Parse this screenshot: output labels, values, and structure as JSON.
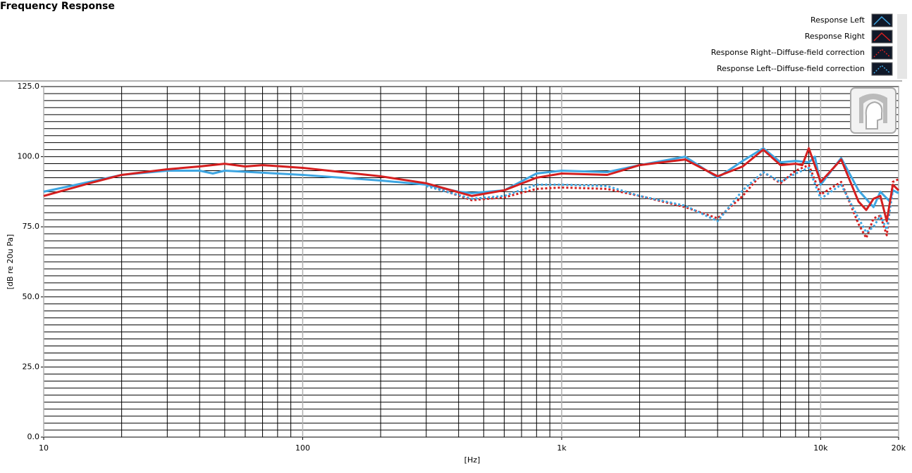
{
  "chart_data": {
    "type": "line",
    "title": "Frequency Response",
    "xlabel": "[Hz]",
    "ylabel": "[dB re 20u Pa]",
    "xscale": "log",
    "xlim": [
      10,
      20000
    ],
    "ylim": [
      0,
      125
    ],
    "xticks": [
      10,
      100,
      {
        "value": 1000,
        "label": "1k"
      },
      {
        "value": 10000,
        "label": "10k"
      },
      {
        "value": 20000,
        "label": "20k"
      }
    ],
    "yticks": [
      {
        "value": 0,
        "label": "0.0"
      },
      {
        "value": 25,
        "label": "25.0"
      },
      {
        "value": 50,
        "label": "50.0"
      },
      {
        "value": 75,
        "label": "75.0"
      },
      {
        "value": 100,
        "label": "100.0"
      },
      {
        "value": 125,
        "label": "125.0"
      }
    ],
    "xminorticks": [
      20,
      30,
      40,
      50,
      60,
      70,
      80,
      90,
      200,
      300,
      400,
      500,
      600,
      700,
      800,
      900,
      2000,
      3000,
      4000,
      5000,
      6000,
      7000,
      8000,
      9000
    ],
    "yminorticks": [
      2.5,
      5,
      7.5,
      10,
      12.5,
      15,
      17.5,
      20,
      22.5,
      27.5,
      30,
      32.5,
      35,
      37.5,
      40,
      42.5,
      45,
      47.5,
      52.5,
      55,
      57.5,
      60,
      62.5,
      65,
      67.5,
      70,
      72.5,
      77.5,
      80,
      82.5,
      85,
      87.5,
      90,
      92.5,
      95,
      97.5,
      102.5,
      105,
      107.5,
      110,
      112.5,
      115,
      117.5,
      120,
      122.5
    ],
    "grid": true,
    "legend_position": "top-right",
    "series": [
      {
        "name": "Response Left",
        "color": "#3ea6e2",
        "dashed": false,
        "x": [
          10,
          15,
          20,
          30,
          40,
          45,
          50,
          100,
          200,
          300,
          400,
          450,
          600,
          800,
          1000,
          1500,
          2000,
          3000,
          4000,
          5000,
          6000,
          7000,
          8000,
          9000,
          9500,
          10000,
          12000,
          14000,
          16000,
          17000,
          18500,
          19000,
          20000
        ],
        "values": [
          87.5,
          91,
          93.5,
          95,
          95,
          94,
          95,
          93.5,
          91.5,
          90,
          87.5,
          87,
          88,
          94,
          95,
          94.5,
          97,
          100,
          92.5,
          98.5,
          103,
          98,
          98.5,
          98,
          100,
          90,
          99.5,
          88,
          82,
          87.5,
          84,
          88,
          87
        ]
      },
      {
        "name": "Response Right",
        "color": "#d41f1f",
        "dashed": false,
        "x": [
          10,
          15,
          20,
          30,
          40,
          50,
          60,
          70,
          100,
          200,
          300,
          450,
          600,
          800,
          1000,
          1500,
          2000,
          3000,
          4000,
          5000,
          6000,
          7000,
          8000,
          8500,
          9000,
          10000,
          12000,
          14000,
          15000,
          16000,
          17000,
          18000,
          19000,
          20000
        ],
        "values": [
          86,
          90.5,
          93.5,
          95.5,
          96.5,
          97.5,
          96.5,
          97,
          96,
          93,
          90.5,
          86,
          88,
          92.5,
          94,
          93.5,
          97,
          99,
          93,
          96.5,
          102.5,
          97,
          97.5,
          97,
          103,
          91,
          99,
          84,
          81,
          85,
          86,
          77,
          90,
          88
        ]
      },
      {
        "name": "Response Right--Diffuse-field correction",
        "color": "#d41f1f",
        "dashed": true,
        "x": [
          300,
          450,
          600,
          800,
          1000,
          1500,
          2000,
          3000,
          4000,
          5000,
          6000,
          7000,
          8000,
          9000,
          10000,
          12000,
          14000,
          15000,
          16000,
          17000,
          18000,
          19000,
          20000
        ],
        "values": [
          90,
          84.5,
          85.5,
          88.5,
          89,
          88.5,
          86,
          82,
          78,
          86,
          94.5,
          90.5,
          95,
          97,
          86.5,
          91,
          76,
          71,
          78,
          79,
          72,
          91,
          92
        ]
      },
      {
        "name": "Response Left--Diffuse-field correction",
        "color": "#3ea6e2",
        "dashed": true,
        "x": [
          300,
          450,
          600,
          800,
          1000,
          1500,
          2000,
          3000,
          4000,
          5000,
          6000,
          7000,
          8000,
          9000,
          10000,
          12000,
          14000,
          15000,
          16000,
          17000,
          18000,
          19000,
          20000
        ],
        "values": [
          89.5,
          85,
          86,
          90,
          90,
          89.5,
          86,
          82.5,
          77,
          88,
          94.5,
          91,
          94,
          96,
          85,
          90,
          78,
          73,
          75,
          79,
          74,
          88,
          87
        ]
      }
    ]
  }
}
